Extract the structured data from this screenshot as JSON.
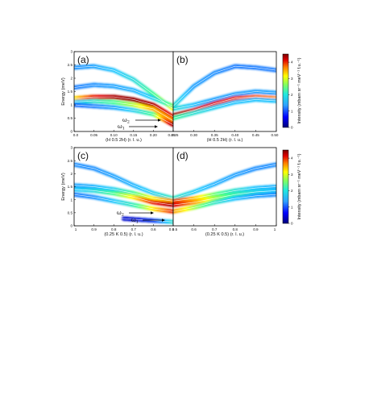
{
  "chart_data": [
    {
      "type": "heatmap",
      "panel": "(a)",
      "xlabel": "(H 0.5 2H) (r. l. u.)",
      "ylabel": "Energy (meV)",
      "xlim": [
        0,
        0.25
      ],
      "ylim": [
        0,
        3
      ],
      "xticks": [
        "0.0",
        "0.05",
        "0.10",
        "0.15",
        "0.20",
        "0.25"
      ],
      "yticks": [
        "0",
        "0.5",
        "1",
        "1.5",
        "2",
        "2.5",
        "3"
      ],
      "annotations": [
        "ω2",
        "ω1"
      ],
      "bands": [
        {
          "x": [
            0,
            0.05,
            0.1,
            0.15,
            0.2,
            0.25
          ],
          "y": [
            2.4,
            2.45,
            2.3,
            1.95,
            1.4,
            0.85
          ],
          "intensity": [
            0.9,
            1.0,
            1.2,
            1.4,
            1.8,
            2.5
          ]
        },
        {
          "x": [
            0,
            0.05,
            0.1,
            0.15,
            0.2,
            0.25
          ],
          "y": [
            1.65,
            1.75,
            1.7,
            1.55,
            1.25,
            0.95
          ],
          "intensity": [
            0.8,
            0.9,
            1.0,
            1.1,
            1.3,
            2.0
          ]
        },
        {
          "x": [
            0,
            0.05,
            0.1,
            0.15,
            0.2,
            0.25
          ],
          "y": [
            1.25,
            1.3,
            1.3,
            1.2,
            1.0,
            0.55
          ],
          "intensity": [
            2.5,
            3.5,
            4.0,
            4.2,
            4.0,
            3.5
          ]
        },
        {
          "x": [
            0,
            0.05,
            0.1,
            0.15,
            0.2,
            0.25
          ],
          "y": [
            1.1,
            1.15,
            1.1,
            1.0,
            0.85,
            0.4
          ],
          "intensity": [
            1.2,
            1.5,
            1.8,
            2.2,
            2.8,
            3.0
          ]
        },
        {
          "x": [
            0,
            0.05,
            0.1,
            0.15,
            0.2,
            0.25
          ],
          "y": [
            1.0,
            0.95,
            0.9,
            0.8,
            0.65,
            0.25
          ],
          "intensity": [
            0.7,
            0.8,
            1.0,
            1.3,
            1.8,
            4.0
          ]
        }
      ]
    },
    {
      "type": "heatmap",
      "panel": "(b)",
      "xlabel": "(H 0.5 2H) (r. l. u.)",
      "xlim": [
        0.25,
        0.5
      ],
      "ylim": [
        0,
        3
      ],
      "xticks": [
        "0.25",
        "0.30",
        "0.35",
        "0.40",
        "0.45",
        "0.50"
      ],
      "bands": [
        {
          "x": [
            0.25,
            0.3,
            0.35,
            0.4,
            0.45,
            0.5
          ],
          "y": [
            0.95,
            1.7,
            2.2,
            2.45,
            2.4,
            2.3
          ],
          "intensity": [
            1.5,
            1.0,
            0.9,
            0.8,
            0.8,
            0.8
          ]
        },
        {
          "x": [
            0.25,
            0.3,
            0.35,
            0.4,
            0.45,
            0.5
          ],
          "y": [
            0.85,
            1.0,
            1.2,
            1.4,
            1.5,
            1.45
          ],
          "intensity": [
            1.5,
            1.2,
            1.0,
            1.0,
            1.0,
            1.0
          ]
        },
        {
          "x": [
            0.25,
            0.3,
            0.35,
            0.4,
            0.45,
            0.5
          ],
          "y": [
            0.6,
            0.8,
            1.05,
            1.25,
            1.3,
            1.25
          ],
          "intensity": [
            4.2,
            3.8,
            3.6,
            3.4,
            3.2,
            3.0
          ]
        },
        {
          "x": [
            0.25,
            0.3,
            0.35,
            0.4,
            0.45,
            0.5
          ],
          "y": [
            0.5,
            0.7,
            0.9,
            1.1,
            1.2,
            1.15
          ],
          "intensity": [
            1.8,
            1.5,
            1.3,
            1.2,
            1.2,
            1.2
          ]
        }
      ]
    },
    {
      "type": "heatmap",
      "panel": "(c)",
      "xlabel": "(0.25 K 0.5) (r. l. u.)",
      "ylabel": "Energy (meV)",
      "xlim": [
        1,
        0.5
      ],
      "ylim": [
        0,
        3
      ],
      "xticks": [
        "1",
        "0.9",
        "0.8",
        "0.7",
        "0.6",
        "0.5"
      ],
      "yticks": [
        "0",
        "0.5",
        "1",
        "1.5",
        "2",
        "2.5",
        "3"
      ],
      "annotations": [
        "ω2",
        "ω1"
      ],
      "bands": [
        {
          "x": [
            1,
            0.9,
            0.8,
            0.7,
            0.6,
            0.5
          ],
          "y": [
            2.35,
            2.2,
            1.9,
            1.55,
            1.25,
            1.05
          ],
          "intensity": [
            0.9,
            0.9,
            1.0,
            1.1,
            1.3,
            1.6
          ]
        },
        {
          "x": [
            1,
            0.9,
            0.8,
            0.7,
            0.6,
            0.5
          ],
          "y": [
            1.55,
            1.5,
            1.4,
            1.25,
            1.05,
            0.95
          ],
          "intensity": [
            1.0,
            1.1,
            1.3,
            1.8,
            2.5,
            3.0
          ]
        },
        {
          "x": [
            1,
            0.9,
            0.8,
            0.7,
            0.6,
            0.5
          ],
          "y": [
            1.4,
            1.35,
            1.25,
            1.1,
            0.9,
            0.8
          ],
          "intensity": [
            1.2,
            1.4,
            1.8,
            2.5,
            3.5,
            4.0
          ]
        },
        {
          "x": [
            1,
            0.9,
            0.8,
            0.7,
            0.6,
            0.5
          ],
          "y": [
            1.2,
            1.1,
            0.95,
            0.8,
            0.65,
            0.55
          ],
          "intensity": [
            0.8,
            0.9,
            1.2,
            1.6,
            2.5,
            3.5
          ]
        },
        {
          "x": [
            1,
            0.9,
            0.8,
            0.7,
            0.6,
            0.5
          ],
          "y": [
            0.4,
            0.35,
            0.3,
            0.25,
            0.2,
            0.15
          ],
          "intensity": [
            0,
            0,
            0,
            0.1,
            0.4,
            1.5
          ]
        }
      ]
    },
    {
      "type": "heatmap",
      "panel": "(d)",
      "xlabel": "(0.25 K 0.5) (r. l. u.)",
      "xlim": [
        0.5,
        1
      ],
      "ylim": [
        0,
        3
      ],
      "xticks": [
        "0.5",
        "0.6",
        "0.7",
        "0.8",
        "0.9",
        "1"
      ],
      "bands": [
        {
          "x": [
            0.5,
            0.6,
            0.7,
            0.8,
            0.9,
            1
          ],
          "y": [
            1.05,
            1.3,
            1.6,
            1.95,
            2.2,
            2.35
          ],
          "intensity": [
            1.6,
            1.3,
            1.1,
            1.0,
            0.9,
            0.9
          ]
        },
        {
          "x": [
            0.5,
            0.6,
            0.7,
            0.8,
            0.9,
            1
          ],
          "y": [
            0.95,
            1.05,
            1.2,
            1.35,
            1.45,
            1.5
          ],
          "intensity": [
            3.5,
            2.8,
            2.0,
            1.5,
            1.2,
            1.1
          ]
        },
        {
          "x": [
            0.5,
            0.6,
            0.7,
            0.8,
            0.9,
            1
          ],
          "y": [
            0.8,
            0.9,
            1.05,
            1.2,
            1.3,
            1.35
          ],
          "intensity": [
            3.8,
            3.0,
            2.2,
            1.7,
            1.4,
            1.2
          ]
        },
        {
          "x": [
            0.5,
            0.6,
            0.7,
            0.8,
            0.9,
            1
          ],
          "y": [
            0.55,
            0.7,
            0.9,
            1.05,
            1.15,
            1.2
          ],
          "intensity": [
            3.0,
            2.2,
            1.6,
            1.2,
            1.0,
            0.9
          ]
        }
      ]
    }
  ],
  "colorbars": [
    {
      "label": "Intensity (mbarn sr⁻¹ meV⁻¹ f.u.⁻¹)",
      "ticks": [
        "0",
        "1",
        "2",
        "3",
        "4"
      ],
      "range": [
        0,
        4.5
      ]
    },
    {
      "label": "Intensity (mbarn sr⁻¹ meV⁻¹ f.u.⁻¹)",
      "ticks": [
        "0",
        "1",
        "2",
        "3",
        "4"
      ],
      "range": [
        0,
        4.5
      ]
    }
  ],
  "colormap": [
    "#0000c8",
    "#2060ff",
    "#20c8ff",
    "#40ff90",
    "#ffff00",
    "#ff8000",
    "#e00000",
    "#800000"
  ]
}
